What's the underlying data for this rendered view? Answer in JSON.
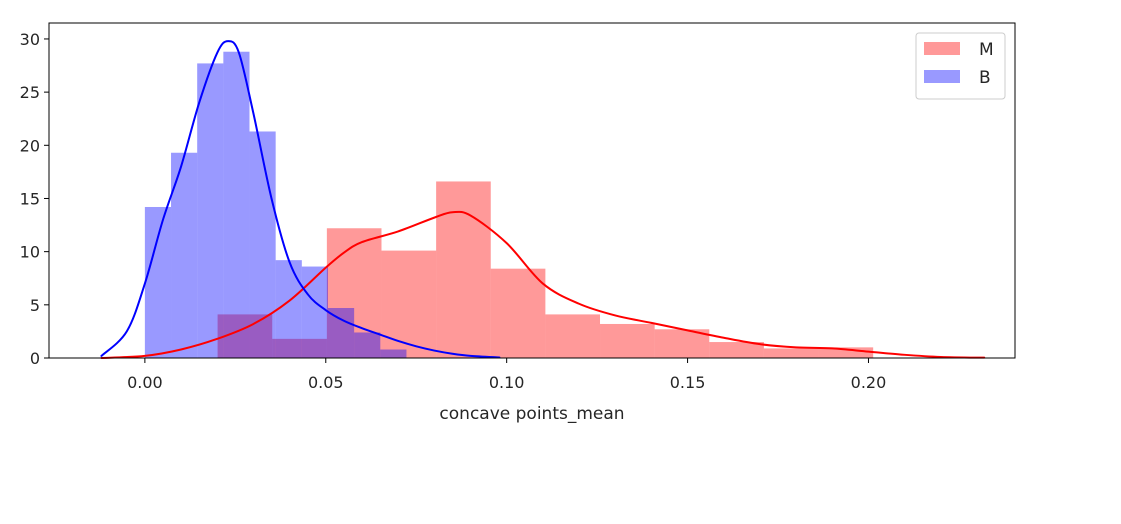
{
  "chart_data": {
    "type": "histogram",
    "xlabel": "concave points_mean",
    "ylabel": "",
    "xlim": [
      -0.0265,
      0.2405
    ],
    "ylim": [
      0,
      31.5
    ],
    "xticks": [
      0.0,
      0.05,
      0.1,
      0.15,
      0.2
    ],
    "xtick_labels": [
      "0.00",
      "0.05",
      "0.10",
      "0.15",
      "0.20"
    ],
    "yticks": [
      0,
      5,
      10,
      15,
      20,
      25,
      30
    ],
    "ytick_labels": [
      "0",
      "5",
      "10",
      "15",
      "20",
      "25",
      "30"
    ],
    "grid": false,
    "legend": {
      "position": "top-right"
    },
    "series": [
      {
        "name": "M",
        "color": "#ff0000",
        "bin_edges": [
          0.0201,
          0.0352,
          0.0503,
          0.0654,
          0.0805,
          0.0956,
          0.1107,
          0.1258,
          0.1409,
          0.156,
          0.1711,
          0.1862,
          0.2013
        ],
        "values": [
          4.1,
          1.8,
          12.2,
          10.1,
          16.6,
          8.4,
          4.1,
          3.2,
          2.7,
          1.5,
          0.9,
          1.0
        ],
        "kde": [
          [
            -0.012,
            0.0
          ],
          [
            0.0,
            0.2
          ],
          [
            0.01,
            0.8
          ],
          [
            0.02,
            1.8
          ],
          [
            0.03,
            3.2
          ],
          [
            0.04,
            5.4
          ],
          [
            0.05,
            8.5
          ],
          [
            0.055,
            9.9
          ],
          [
            0.06,
            10.9
          ],
          [
            0.07,
            11.9
          ],
          [
            0.08,
            13.2
          ],
          [
            0.085,
            13.7
          ],
          [
            0.09,
            13.4
          ],
          [
            0.1,
            10.8
          ],
          [
            0.11,
            7.0
          ],
          [
            0.12,
            5.1
          ],
          [
            0.13,
            4.0
          ],
          [
            0.14,
            3.3
          ],
          [
            0.15,
            2.6
          ],
          [
            0.16,
            1.9
          ],
          [
            0.17,
            1.3
          ],
          [
            0.18,
            1.0
          ],
          [
            0.19,
            0.9
          ],
          [
            0.2,
            0.6
          ],
          [
            0.21,
            0.3
          ],
          [
            0.22,
            0.1
          ],
          [
            0.232,
            0.03
          ]
        ]
      },
      {
        "name": "B",
        "color": "#0000ff",
        "bin_edges": [
          0.0,
          0.00723,
          0.01446,
          0.02169,
          0.02892,
          0.03615,
          0.04338,
          0.05061,
          0.05784,
          0.06507,
          0.0723
        ],
        "values": [
          14.2,
          19.3,
          27.7,
          28.8,
          21.3,
          9.2,
          8.6,
          4.7,
          2.4,
          0.8
        ],
        "kde": [
          [
            -0.012,
            0.2
          ],
          [
            -0.005,
            2.5
          ],
          [
            0.0,
            7.0
          ],
          [
            0.005,
            13.0
          ],
          [
            0.01,
            18.0
          ],
          [
            0.015,
            24.0
          ],
          [
            0.02,
            28.7
          ],
          [
            0.023,
            29.8
          ],
          [
            0.026,
            28.7
          ],
          [
            0.03,
            23.0
          ],
          [
            0.035,
            15.0
          ],
          [
            0.04,
            9.0
          ],
          [
            0.045,
            6.0
          ],
          [
            0.05,
            4.5
          ],
          [
            0.055,
            3.5
          ],
          [
            0.06,
            2.8
          ],
          [
            0.065,
            2.2
          ],
          [
            0.07,
            1.6
          ],
          [
            0.075,
            1.1
          ],
          [
            0.08,
            0.7
          ],
          [
            0.085,
            0.4
          ],
          [
            0.09,
            0.2
          ],
          [
            0.098,
            0.05
          ]
        ]
      }
    ]
  }
}
